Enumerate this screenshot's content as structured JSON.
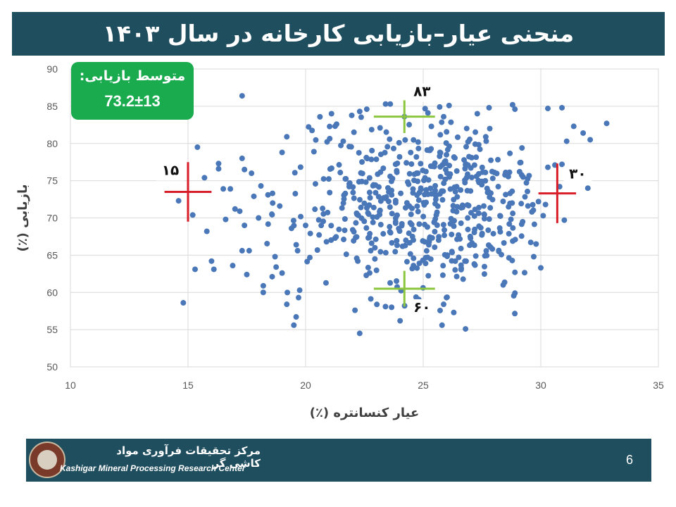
{
  "title": "منحنی عیار–بازیابی کارخانه در سال ۱۴۰۳",
  "badge": {
    "label": "متوسط بازیابی:",
    "value": "73.2±13"
  },
  "footer": {
    "org_fa": "مرکز تحقیقات فرآوری مواد کاشی گر",
    "org_en": "Kashigar Mineral Processing Research Center",
    "page": "6"
  },
  "colors": {
    "header": "#1f4e5f",
    "badge": "#1aab4f",
    "points": "#4a77b8",
    "red_marker": "#d81e28",
    "green_marker": "#8cc63f"
  },
  "chart_data": {
    "type": "scatter",
    "xlabel": "عیار کنسانتره (٪)",
    "ylabel": "بازیابی (٪)",
    "xlim": [
      10,
      35
    ],
    "ylim": [
      50,
      90
    ],
    "xticks": [
      10,
      15,
      20,
      25,
      30,
      35
    ],
    "yticks": [
      50,
      55,
      60,
      65,
      70,
      75,
      80,
      85,
      90
    ],
    "grid": "vertical-and-horizontal",
    "annotations": [
      {
        "text": "۱۵",
        "x": 15,
        "y": 73.5,
        "color": "#d81e28"
      },
      {
        "text": "۳۰",
        "x": 30.7,
        "y": 73.3,
        "color": "#d81e28"
      },
      {
        "text": "۸۳",
        "x": 24.2,
        "y": 83.6,
        "color": "#8cc63f"
      },
      {
        "text": "۶۰",
        "x": 24.2,
        "y": 60.5,
        "color": "#8cc63f"
      }
    ],
    "points": [
      [
        17.3,
        86.4
      ],
      [
        14.8,
        58.6
      ],
      [
        15.4,
        79.5
      ],
      [
        15.2,
        70.4
      ],
      [
        14.6,
        72.3
      ],
      [
        15.8,
        68.2
      ],
      [
        16.0,
        64.2
      ],
      [
        16.1,
        63.1
      ],
      [
        15.7,
        75.4
      ],
      [
        16.3,
        76.6
      ],
      [
        16.3,
        77.3
      ],
      [
        16.5,
        73.9
      ],
      [
        16.8,
        73.9
      ],
      [
        17.0,
        71.2
      ],
      [
        17.2,
        70.9
      ],
      [
        16.6,
        69.8
      ],
      [
        17.4,
        69.0
      ],
      [
        17.3,
        78.0
      ],
      [
        17.4,
        76.5
      ],
      [
        17.7,
        76.0
      ],
      [
        16.9,
        63.6
      ],
      [
        17.3,
        65.6
      ],
      [
        17.6,
        65.6
      ],
      [
        17.5,
        62.4
      ],
      [
        17.8,
        72.9
      ],
      [
        18.0,
        70.0
      ],
      [
        18.1,
        74.3
      ],
      [
        18.4,
        73.1
      ],
      [
        18.6,
        72.0
      ],
      [
        18.9,
        71.6
      ],
      [
        18.2,
        60.0
      ],
      [
        18.7,
        64.8
      ],
      [
        19.0,
        78.8
      ],
      [
        19.2,
        80.9
      ],
      [
        19.0,
        62.6
      ],
      [
        19.2,
        58.4
      ],
      [
        19.5,
        55.6
      ],
      [
        19.7,
        59.3
      ],
      [
        19.4,
        68.6
      ],
      [
        19.6,
        66.4
      ],
      [
        15.3,
        63.1
      ],
      [
        20.0,
        69.0
      ],
      [
        21.1,
        84.0
      ],
      [
        22.3,
        84.3
      ],
      [
        22.6,
        84.6
      ],
      [
        21.6,
        80.3
      ],
      [
        22.1,
        57.6
      ],
      [
        22.3,
        54.5
      ],
      [
        23.4,
        85.3
      ],
      [
        23.6,
        85.3
      ],
      [
        24.2,
        83.6
      ],
      [
        25.2,
        84.1
      ],
      [
        25.7,
        84.9
      ],
      [
        26.1,
        85.1
      ],
      [
        27.3,
        84.0
      ],
      [
        27.8,
        84.8
      ],
      [
        28.8,
        85.2
      ],
      [
        28.9,
        84.6
      ],
      [
        29.2,
        79.4
      ],
      [
        30.3,
        84.7
      ],
      [
        30.9,
        84.8
      ],
      [
        31.1,
        80.3
      ],
      [
        31.4,
        82.3
      ],
      [
        31.8,
        81.4
      ],
      [
        32.1,
        80.5
      ],
      [
        32.8,
        82.7
      ],
      [
        32.0,
        74.0
      ],
      [
        30.8,
        74.2
      ],
      [
        30.3,
        76.8
      ],
      [
        30.6,
        77.1
      ],
      [
        30.9,
        77.2
      ],
      [
        31.0,
        69.7
      ],
      [
        30.1,
        70.3
      ],
      [
        29.9,
        72.2
      ],
      [
        30.2,
        71.8
      ],
      [
        29.8,
        66.5
      ],
      [
        30.0,
        63.3
      ],
      [
        29.7,
        64.8
      ],
      [
        28.9,
        62.7
      ],
      [
        28.9,
        59.9
      ],
      [
        28.4,
        61.0
      ],
      [
        26.3,
        57.3
      ],
      [
        25.8,
        55.6
      ],
      [
        26.8,
        55.1
      ]
    ],
    "cluster": {
      "count": 540,
      "center_x": 25.0,
      "center_y": 72.0,
      "sd_x": 2.7,
      "sd_y": 6.2,
      "xlim": [
        18.2,
        29.8
      ],
      "ylim": [
        56.0,
        85.0
      ]
    }
  }
}
